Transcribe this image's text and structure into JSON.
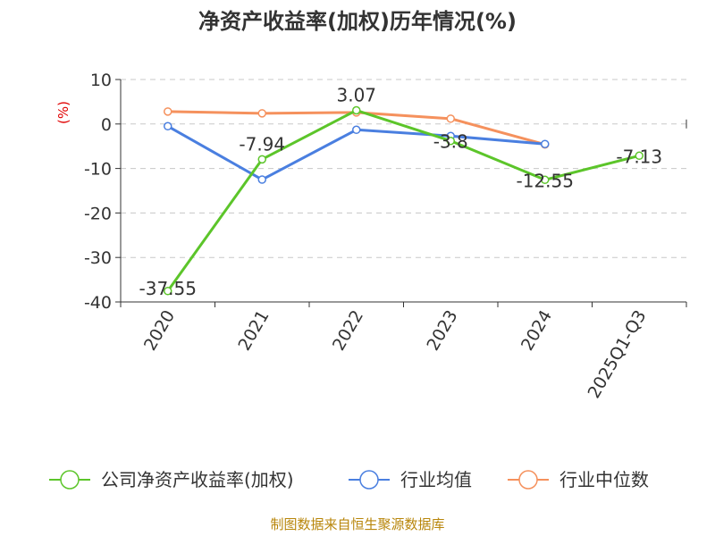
{
  "chart_data": {
    "type": "line",
    "title": "净资产收益率(加权)历年情况(%)",
    "ylabel": "(%)",
    "xlabel": "",
    "categories": [
      "2020",
      "2021",
      "2022",
      "2023",
      "2024",
      "2025Q1-Q3"
    ],
    "ylim": [
      -40,
      10
    ],
    "yticks": [
      10,
      0,
      -10,
      -20,
      -30,
      -40
    ],
    "grid": true,
    "legend_position": "bottom",
    "series": [
      {
        "name": "公司净资产收益率(加权)",
        "color": "#5cc52a",
        "values": [
          -37.55,
          -7.94,
          3.07,
          -3.8,
          -12.55,
          -7.13
        ],
        "labels": [
          "-37.55",
          "-7.94",
          "3.07",
          "-3.8",
          "-12.55",
          "-7.13"
        ]
      },
      {
        "name": "行业均值",
        "color": "#4a7fe0",
        "values": [
          -0.5,
          -12.5,
          -1.3,
          -2.7,
          -4.5,
          null
        ]
      },
      {
        "name": "行业中位数",
        "color": "#f5915d",
        "values": [
          2.8,
          2.4,
          2.6,
          1.2,
          -4.6,
          null
        ]
      }
    ],
    "source": "制图数据来自恒生聚源数据库"
  }
}
